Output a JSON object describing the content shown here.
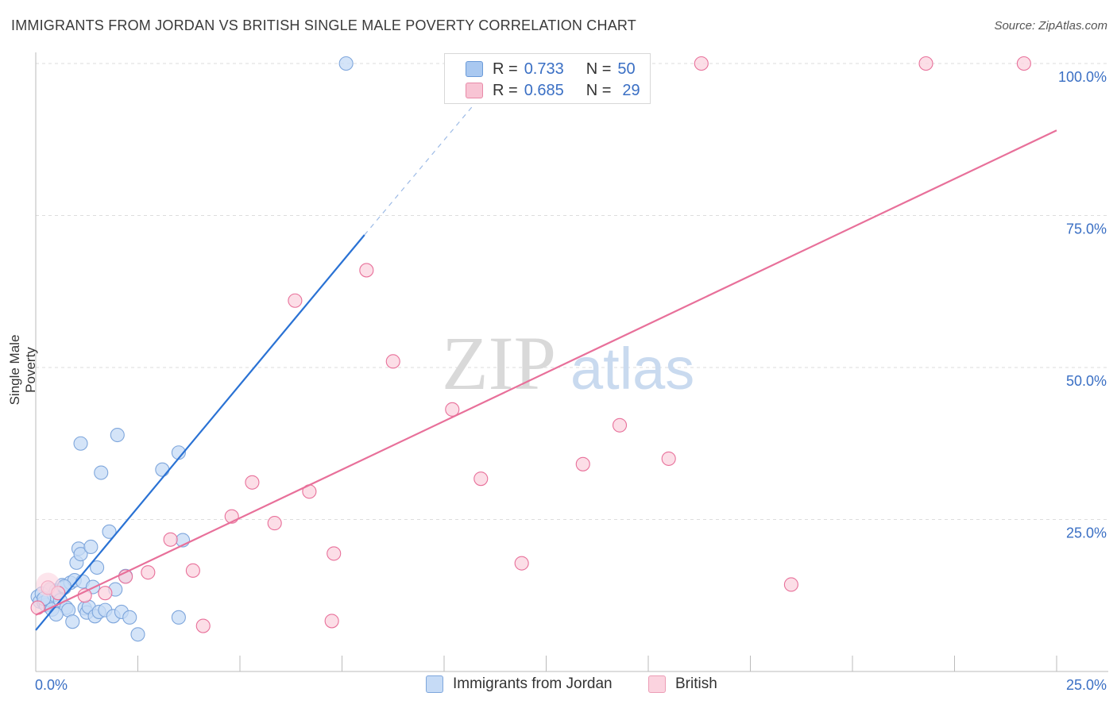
{
  "header": {
    "title": "IMMIGRANTS FROM JORDAN VS BRITISH SINGLE MALE POVERTY CORRELATION CHART",
    "source": "Source: ZipAtlas.com"
  },
  "watermark": {
    "zip": "ZIP",
    "atlas": "atlas"
  },
  "legend_top": {
    "rows": [
      {
        "r_label": "R =",
        "r_value": "0.733",
        "n_label": "N =",
        "n_value": "50",
        "color": "#a9c8f0",
        "border": "#6a9ad8"
      },
      {
        "r_label": "R =",
        "r_value": "0.685",
        "n_label": "N =",
        "n_value": "29",
        "color": "#f8c4d4",
        "border": "#e88aa8"
      }
    ]
  },
  "legend_bottom": {
    "items": [
      {
        "label": "Immigrants from Jordan",
        "color": "#c6dbf6",
        "border": "#7ea6dc"
      },
      {
        "label": "British",
        "color": "#fbd3df",
        "border": "#ec9db6"
      }
    ]
  },
  "chart_data": {
    "type": "scatter",
    "title": "IMMIGRANTS FROM JORDAN VS BRITISH SINGLE MALE POVERTY CORRELATION CHART",
    "xlabel": "",
    "ylabel": "Single Male Poverty",
    "xlim": [
      0,
      25
    ],
    "ylim": [
      0,
      100
    ],
    "x_tick_labels": [
      "0.0%",
      "25.0%"
    ],
    "y_tick_labels": [
      "25.0%",
      "50.0%",
      "75.0%",
      "100.0%"
    ],
    "y_ticks": [
      25,
      50,
      75,
      100
    ],
    "grid": true,
    "legend_position": "top-center",
    "series": [
      {
        "name": "Immigrants from Jordan",
        "color": "#7ea6dc",
        "fill": "#c6dbf6",
        "trend": {
          "x0": 0,
          "y0": 6.8,
          "x1": 8.05,
          "y1": 71.8,
          "dash_to_x": 10.7,
          "dash_to_y": 93
        },
        "points": [
          [
            0.05,
            12.3
          ],
          [
            0.1,
            11.5
          ],
          [
            0.15,
            12.8
          ],
          [
            0.2,
            11.3
          ],
          [
            0.25,
            10.9
          ],
          [
            0.3,
            11.8
          ],
          [
            0.35,
            13.5
          ],
          [
            0.4,
            10.2
          ],
          [
            0.45,
            12.6
          ],
          [
            0.5,
            13.3
          ],
          [
            0.55,
            13.1
          ],
          [
            0.6,
            11.7
          ],
          [
            0.65,
            14.2
          ],
          [
            0.7,
            13.8
          ],
          [
            0.75,
            10.5
          ],
          [
            0.8,
            10.1
          ],
          [
            0.85,
            14.6
          ],
          [
            0.9,
            8.2
          ],
          [
            0.95,
            15
          ],
          [
            1.0,
            17.9
          ],
          [
            1.05,
            20.2
          ],
          [
            1.1,
            19.3
          ],
          [
            1.15,
            14.8
          ],
          [
            1.2,
            10.4
          ],
          [
            1.25,
            9.7
          ],
          [
            1.3,
            10.6
          ],
          [
            1.35,
            20.5
          ],
          [
            1.4,
            13.9
          ],
          [
            1.45,
            9.1
          ],
          [
            1.5,
            17.1
          ],
          [
            1.55,
            9.8
          ],
          [
            1.6,
            32.7
          ],
          [
            1.7,
            10.1
          ],
          [
            1.8,
            23
          ],
          [
            1.9,
            9.1
          ],
          [
            1.95,
            13.5
          ],
          [
            2.0,
            38.9
          ],
          [
            2.1,
            9.8
          ],
          [
            2.2,
            15.7
          ],
          [
            2.3,
            8.9
          ],
          [
            2.5,
            6.1
          ],
          [
            3.1,
            33.2
          ],
          [
            3.5,
            36
          ],
          [
            3.5,
            8.9
          ],
          [
            3.6,
            21.6
          ],
          [
            1.1,
            37.5
          ],
          [
            0.2,
            12.0
          ],
          [
            0.5,
            9.4
          ],
          [
            0.7,
            14.0
          ],
          [
            7.6,
            100
          ]
        ]
      },
      {
        "name": "British",
        "color": "#e8709a",
        "fill": "#fbd3df",
        "trend": {
          "x0": 0,
          "y0": 9.3,
          "x1": 25,
          "y1": 89
        },
        "points": [
          [
            0.3,
            13.8
          ],
          [
            0.55,
            12.9
          ],
          [
            1.2,
            12.5
          ],
          [
            1.7,
            12.9
          ],
          [
            2.2,
            15.6
          ],
          [
            2.75,
            16.3
          ],
          [
            3.3,
            21.7
          ],
          [
            3.85,
            16.6
          ],
          [
            4.1,
            7.5
          ],
          [
            4.8,
            25.5
          ],
          [
            5.3,
            31.1
          ],
          [
            5.85,
            24.4
          ],
          [
            6.35,
            61
          ],
          [
            6.7,
            29.6
          ],
          [
            7.25,
            8.3
          ],
          [
            7.3,
            19.4
          ],
          [
            8.1,
            66
          ],
          [
            8.75,
            51
          ],
          [
            10.2,
            43.1
          ],
          [
            10.9,
            31.7
          ],
          [
            11.9,
            17.8
          ],
          [
            13.4,
            34.1
          ],
          [
            14.3,
            40.5
          ],
          [
            15.5,
            35
          ],
          [
            16.3,
            100
          ],
          [
            18.5,
            14.3
          ],
          [
            21.8,
            100
          ],
          [
            24.2,
            100
          ],
          [
            0.05,
            10.5
          ]
        ]
      }
    ]
  }
}
